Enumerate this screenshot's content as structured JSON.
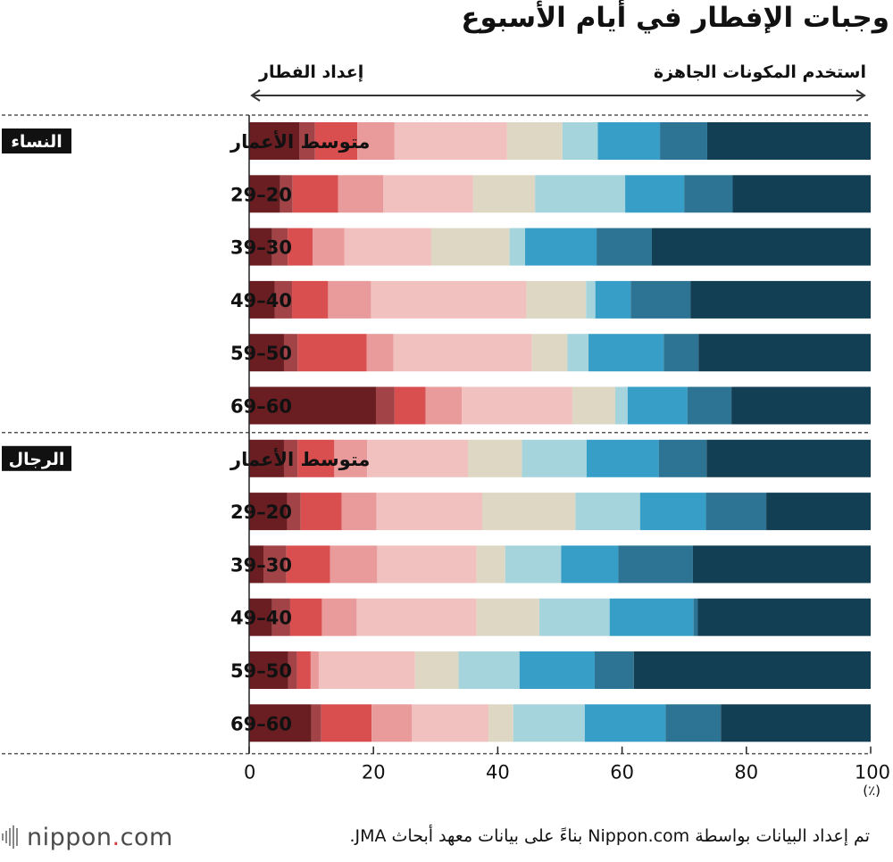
{
  "title": "وجبات الإفطار في أيام الأسبوع",
  "direction_labels": {
    "left": "إعداد الفطار",
    "right": "استخدم المكونات الجاهزة"
  },
  "unit": "(٪)",
  "footer": {
    "source": "تم إعداد البيانات بواسطة Nippon.com بناءً على بيانات معهد أبحاث JMA.",
    "logo_main": "nippon",
    "logo_dot": ".",
    "logo_tld": "com"
  },
  "colors": [
    "#6b1e22",
    "#a24447",
    "#d94f50",
    "#e99b9b",
    "#f1c1c0",
    "#ddd7c4",
    "#a5d4dd",
    "#379fc7",
    "#2d7494",
    "#133f55"
  ],
  "chart_data": {
    "type": "bar",
    "orientation": "horizontal",
    "stacked": true,
    "xlim": [
      0,
      100
    ],
    "xticks": [
      "0",
      "20",
      "40",
      "60",
      "80",
      "100"
    ],
    "groups": [
      {
        "label": "النساء",
        "categories": [
          "متوسط الأعمار",
          "20–29",
          "30–39",
          "40–49",
          "50–59",
          "60–69"
        ],
        "rows": [
          [
            8.1,
            2.5,
            6.8,
            6.0,
            18.1,
            8.9,
            5.7,
            10.0,
            7.6,
            26.3
          ],
          [
            5.0,
            2.0,
            7.3,
            7.3,
            14.4,
            10.0,
            14.5,
            9.5,
            7.8,
            22.2
          ],
          [
            3.7,
            2.5,
            4.0,
            5.1,
            14.0,
            12.6,
            2.5,
            11.5,
            8.9,
            35.2
          ],
          [
            4.1,
            2.8,
            5.8,
            6.9,
            25.0,
            9.6,
            1.5,
            5.7,
            9.6,
            29.0
          ],
          [
            5.6,
            2.2,
            11.1,
            4.3,
            22.3,
            5.7,
            3.4,
            12.1,
            5.6,
            27.7
          ],
          [
            20.4,
            3.0,
            5.0,
            5.8,
            17.8,
            6.9,
            2.0,
            9.6,
            7.1,
            22.4
          ]
        ]
      },
      {
        "label": "الرجال",
        "categories": [
          "متوسط الأعمار",
          "20–29",
          "30–39",
          "40–49",
          "50–59",
          "60–69"
        ],
        "rows": [
          [
            5.6,
            2.2,
            5.9,
            5.3,
            16.2,
            8.7,
            10.4,
            11.6,
            7.7,
            26.4
          ],
          [
            6.1,
            2.2,
            6.6,
            5.6,
            17.0,
            15.0,
            10.4,
            10.6,
            9.7,
            16.8
          ],
          [
            2.3,
            3.7,
            7.0,
            7.6,
            16.0,
            4.6,
            9.0,
            9.2,
            12.0,
            28.6
          ],
          [
            3.7,
            2.9,
            5.1,
            5.6,
            19.3,
            10.1,
            11.3,
            13.5,
            0.7,
            27.8
          ],
          [
            6.3,
            1.4,
            2.2,
            1.3,
            15.5,
            7.0,
            9.8,
            12.1,
            6.3,
            38.1
          ],
          [
            10.0,
            1.6,
            8.1,
            6.5,
            12.3,
            4.0,
            11.5,
            13.0,
            8.9,
            24.1
          ]
        ]
      }
    ]
  }
}
